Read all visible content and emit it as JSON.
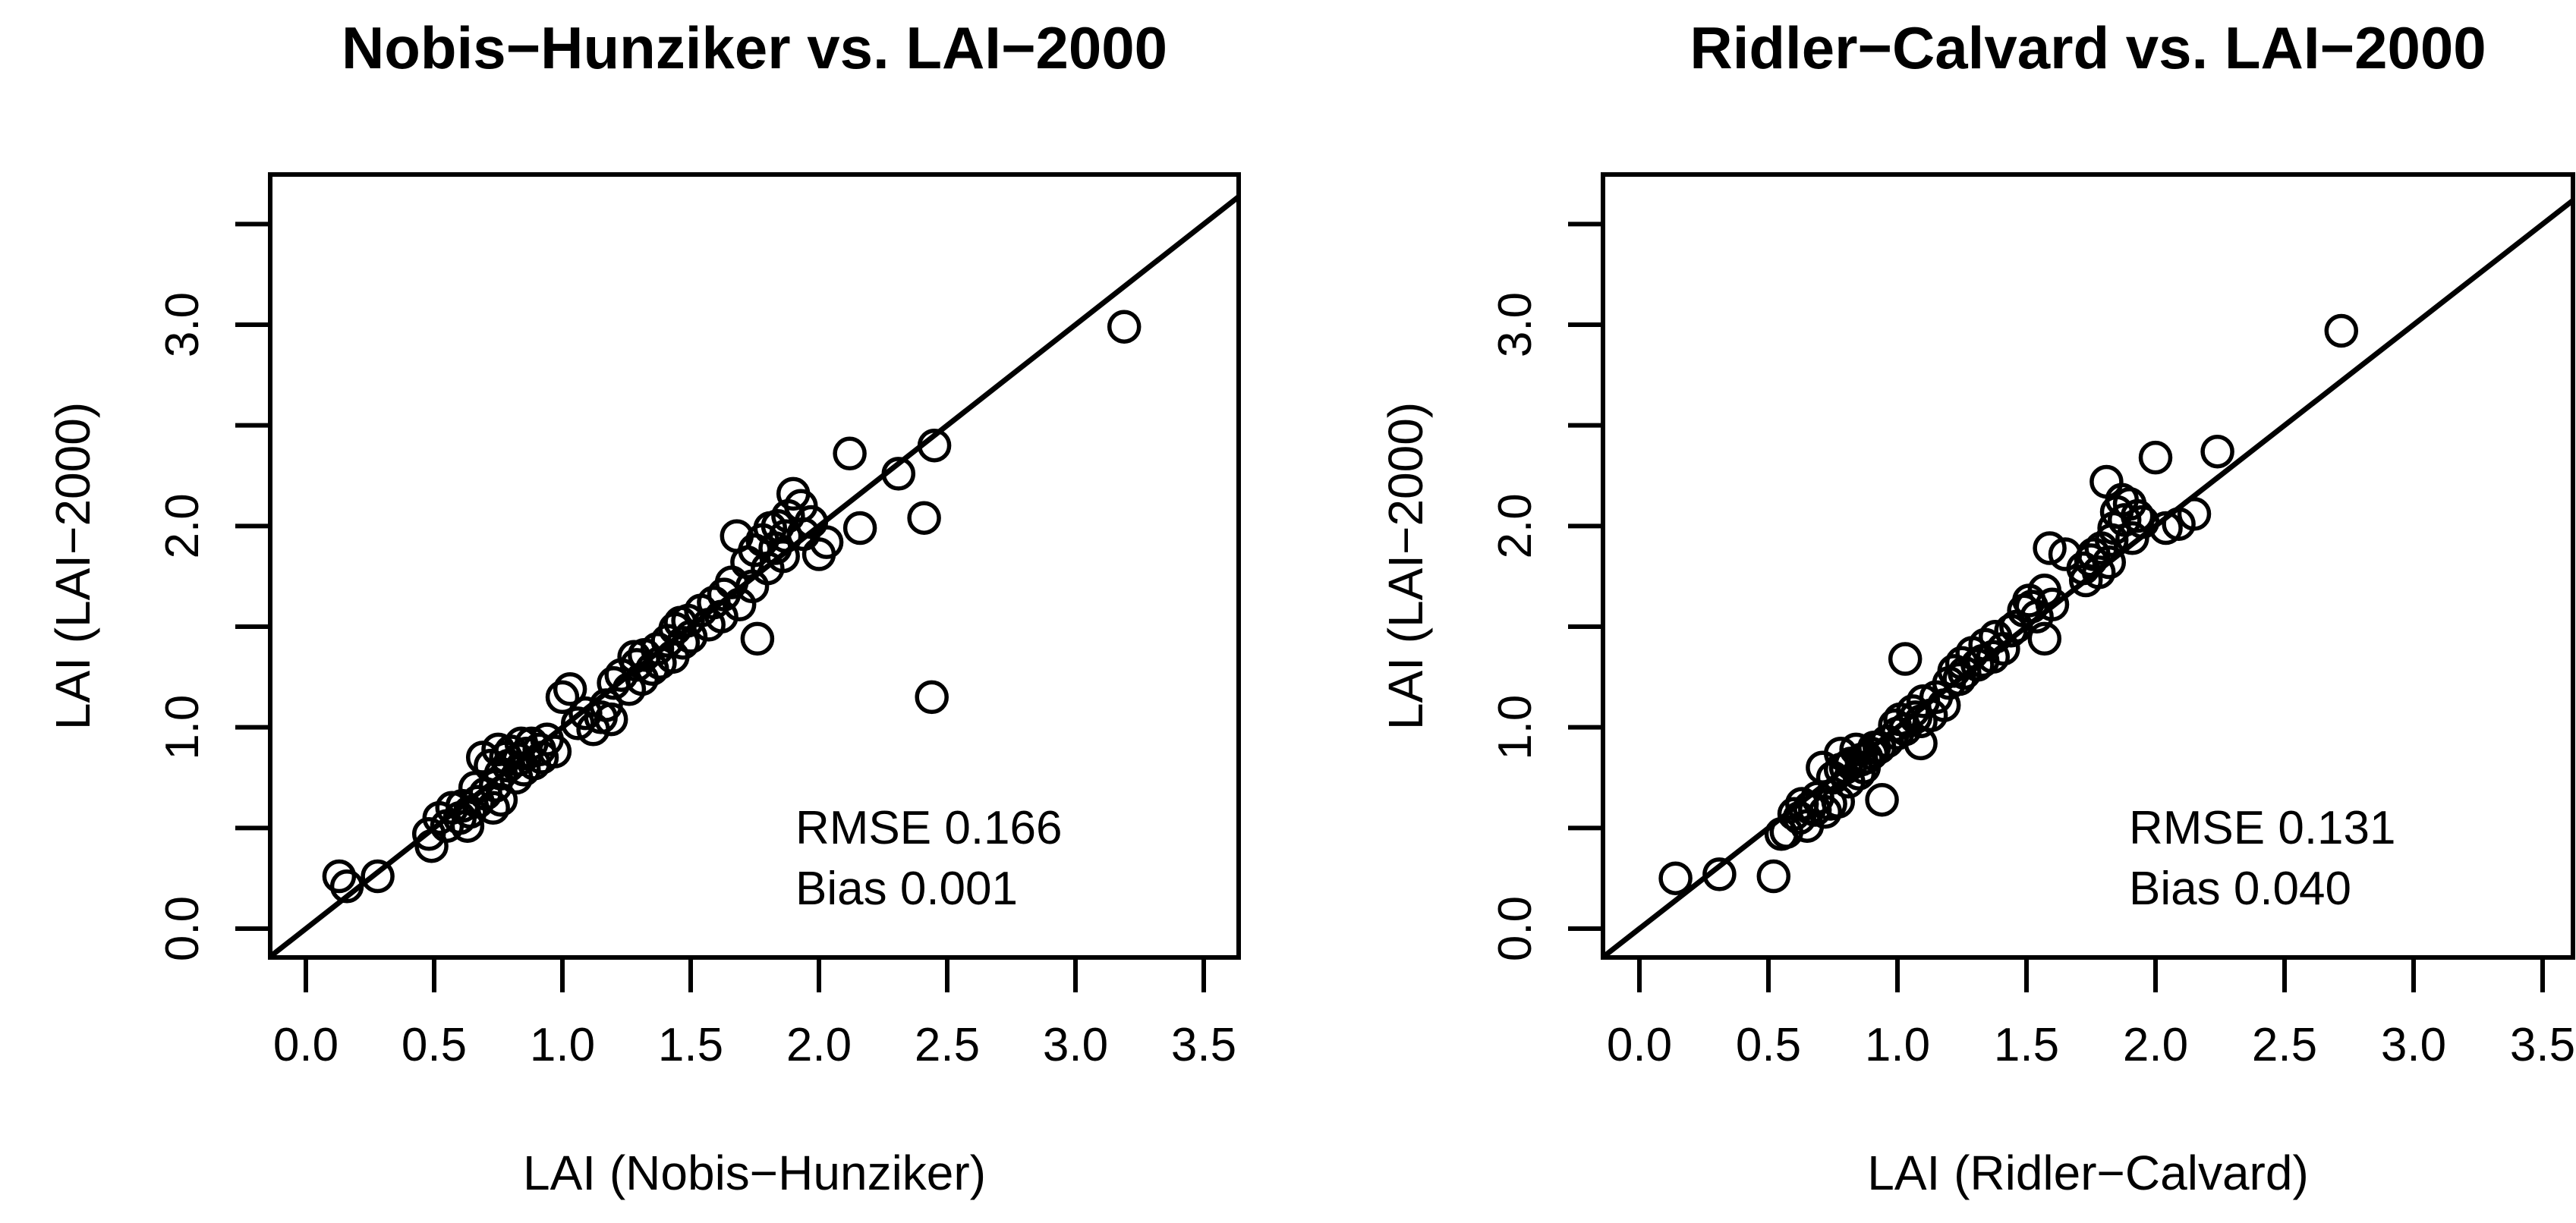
{
  "figure": {
    "background": "#ffffff",
    "ink": "#000000",
    "marker": "open-circle",
    "layout": "two scatter plots side by side"
  },
  "chart_data": [
    {
      "type": "scatter",
      "title": "Nobis−Hunziker vs. LAI−2000",
      "xlabel": "LAI (Nobis−Hunziker)",
      "ylabel": "LAI (LAI−2000)",
      "rmse_label": "RMSE 0.166",
      "bias_label": "Bias 0.001",
      "xlim": [
        0,
        3.5
      ],
      "ylim": [
        0,
        3.5
      ],
      "grid": false,
      "identity_line": true,
      "xticks": [
        {
          "v": 0.0,
          "label": "0.0"
        },
        {
          "v": 0.5,
          "label": "0.5"
        },
        {
          "v": 1.0,
          "label": "1.0"
        },
        {
          "v": 1.5,
          "label": "1.5"
        },
        {
          "v": 2.0,
          "label": "2.0"
        },
        {
          "v": 2.5,
          "label": "2.5"
        },
        {
          "v": 3.0,
          "label": "3.0"
        },
        {
          "v": 3.5,
          "label": "3.5"
        }
      ],
      "yticks": [
        {
          "v": 0.0,
          "label": "0.0"
        },
        {
          "v": 0.5,
          "label": ""
        },
        {
          "v": 1.0,
          "label": "1.0"
        },
        {
          "v": 1.5,
          "label": ""
        },
        {
          "v": 2.0,
          "label": "2.0"
        },
        {
          "v": 2.5,
          "label": ""
        },
        {
          "v": 3.0,
          "label": "3.0"
        },
        {
          "v": 3.5,
          "label": ""
        }
      ],
      "points": [
        [
          0.13,
          0.26
        ],
        [
          0.16,
          0.21
        ],
        [
          0.28,
          0.26
        ],
        [
          0.48,
          0.47
        ],
        [
          0.49,
          0.41
        ],
        [
          0.52,
          0.55
        ],
        [
          0.55,
          0.51
        ],
        [
          0.57,
          0.6
        ],
        [
          0.6,
          0.55
        ],
        [
          0.61,
          0.61
        ],
        [
          0.63,
          0.51
        ],
        [
          0.64,
          0.58
        ],
        [
          0.66,
          0.7
        ],
        [
          0.67,
          0.63
        ],
        [
          0.7,
          0.67
        ],
        [
          0.73,
          0.6
        ],
        [
          0.74,
          0.71
        ],
        [
          0.76,
          0.64
        ],
        [
          0.69,
          0.85
        ],
        [
          0.72,
          0.81
        ],
        [
          0.75,
          0.89
        ],
        [
          0.76,
          0.77
        ],
        [
          0.78,
          0.85
        ],
        [
          0.79,
          0.81
        ],
        [
          0.8,
          0.88
        ],
        [
          0.82,
          0.75
        ],
        [
          0.83,
          0.84
        ],
        [
          0.84,
          0.92
        ],
        [
          0.85,
          0.79
        ],
        [
          0.86,
          0.87
        ],
        [
          0.88,
          0.92
        ],
        [
          0.89,
          0.82
        ],
        [
          0.91,
          0.89
        ],
        [
          0.92,
          0.85
        ],
        [
          0.94,
          0.94
        ],
        [
          0.97,
          0.88
        ],
        [
          1.0,
          1.15
        ],
        [
          1.03,
          1.19
        ],
        [
          1.06,
          1.02
        ],
        [
          1.09,
          1.07
        ],
        [
          1.12,
          0.99
        ],
        [
          1.15,
          1.05
        ],
        [
          1.17,
          1.11
        ],
        [
          1.19,
          1.04
        ],
        [
          1.2,
          1.22
        ],
        [
          1.23,
          1.26
        ],
        [
          1.26,
          1.19
        ],
        [
          1.28,
          1.35
        ],
        [
          1.29,
          1.31
        ],
        [
          1.31,
          1.24
        ],
        [
          1.32,
          1.36
        ],
        [
          1.35,
          1.29
        ],
        [
          1.37,
          1.39
        ],
        [
          1.38,
          1.32
        ],
        [
          1.41,
          1.43
        ],
        [
          1.43,
          1.35
        ],
        [
          1.44,
          1.49
        ],
        [
          1.46,
          1.52
        ],
        [
          1.47,
          1.42
        ],
        [
          1.49,
          1.53
        ],
        [
          1.5,
          1.45
        ],
        [
          1.54,
          1.58
        ],
        [
          1.57,
          1.51
        ],
        [
          1.59,
          1.62
        ],
        [
          1.62,
          1.55
        ],
        [
          1.63,
          1.66
        ],
        [
          1.66,
          1.72
        ],
        [
          1.69,
          1.61
        ],
        [
          1.74,
          1.7
        ],
        [
          1.76,
          1.44
        ],
        [
          1.68,
          1.95
        ],
        [
          1.72,
          1.82
        ],
        [
          1.75,
          1.88
        ],
        [
          1.78,
          1.93
        ],
        [
          1.8,
          1.79
        ],
        [
          1.81,
          1.99
        ],
        [
          1.83,
          1.89
        ],
        [
          1.84,
          2.0
        ],
        [
          1.86,
          1.85
        ],
        [
          1.87,
          1.95
        ],
        [
          1.88,
          2.05
        ],
        [
          1.9,
          2.16
        ],
        [
          1.93,
          2.1
        ],
        [
          1.94,
          1.96
        ],
        [
          1.97,
          2.02
        ],
        [
          2.0,
          1.86
        ],
        [
          2.03,
          1.92
        ],
        [
          2.12,
          2.36
        ],
        [
          2.16,
          1.99
        ],
        [
          2.31,
          2.26
        ],
        [
          2.41,
          2.04
        ],
        [
          2.45,
          2.4
        ],
        [
          2.44,
          1.15
        ],
        [
          3.19,
          2.99
        ]
      ]
    },
    {
      "type": "scatter",
      "title": "Ridler−Calvard vs. LAI−2000",
      "xlabel": "LAI (Ridler−Calvard)",
      "ylabel": "LAI (LAI−2000)",
      "rmse_label": "RMSE 0.131",
      "bias_label": "Bias 0.040",
      "xlim": [
        0,
        3.5
      ],
      "ylim": [
        0,
        3.5
      ],
      "grid": false,
      "identity_line": true,
      "xticks": [
        {
          "v": 0.0,
          "label": "0.0"
        },
        {
          "v": 0.5,
          "label": "0.5"
        },
        {
          "v": 1.0,
          "label": "1.0"
        },
        {
          "v": 1.5,
          "label": "1.5"
        },
        {
          "v": 2.0,
          "label": "2.0"
        },
        {
          "v": 2.5,
          "label": "2.5"
        },
        {
          "v": 3.0,
          "label": "3.0"
        },
        {
          "v": 3.5,
          "label": "3.5"
        }
      ],
      "yticks": [
        {
          "v": 0.0,
          "label": "0.0"
        },
        {
          "v": 0.5,
          "label": ""
        },
        {
          "v": 1.0,
          "label": "1.0"
        },
        {
          "v": 1.5,
          "label": ""
        },
        {
          "v": 2.0,
          "label": "2.0"
        },
        {
          "v": 2.5,
          "label": ""
        },
        {
          "v": 3.0,
          "label": "3.0"
        },
        {
          "v": 3.5,
          "label": ""
        }
      ],
      "points": [
        [
          0.14,
          0.25
        ],
        [
          0.31,
          0.27
        ],
        [
          0.52,
          0.26
        ],
        [
          0.55,
          0.47
        ],
        [
          0.57,
          0.48
        ],
        [
          0.6,
          0.57
        ],
        [
          0.62,
          0.55
        ],
        [
          0.63,
          0.62
        ],
        [
          0.65,
          0.51
        ],
        [
          0.66,
          0.6
        ],
        [
          0.68,
          0.59
        ],
        [
          0.69,
          0.65
        ],
        [
          0.72,
          0.58
        ],
        [
          0.74,
          0.62
        ],
        [
          0.77,
          0.63
        ],
        [
          0.94,
          0.64
        ],
        [
          0.71,
          0.8
        ],
        [
          0.75,
          0.75
        ],
        [
          0.78,
          0.79
        ],
        [
          0.78,
          0.87
        ],
        [
          0.8,
          0.8
        ],
        [
          0.81,
          0.73
        ],
        [
          0.82,
          0.82
        ],
        [
          0.84,
          0.89
        ],
        [
          0.85,
          0.77
        ],
        [
          0.86,
          0.84
        ],
        [
          0.87,
          0.8
        ],
        [
          0.88,
          0.85
        ],
        [
          0.9,
          0.87
        ],
        [
          0.91,
          0.9
        ],
        [
          0.93,
          0.9
        ],
        [
          0.96,
          0.93
        ],
        [
          0.99,
          1.01
        ],
        [
          1.0,
          0.97
        ],
        [
          1.01,
          1.04
        ],
        [
          1.03,
          0.99
        ],
        [
          1.03,
          1.34
        ],
        [
          1.06,
          1.08
        ],
        [
          1.07,
          1.05
        ],
        [
          1.09,
          0.92
        ],
        [
          1.09,
          1.03
        ],
        [
          1.1,
          1.13
        ],
        [
          1.13,
          1.06
        ],
        [
          1.15,
          1.15
        ],
        [
          1.18,
          1.11
        ],
        [
          1.2,
          1.22
        ],
        [
          1.22,
          1.28
        ],
        [
          1.24,
          1.24
        ],
        [
          1.25,
          1.32
        ],
        [
          1.26,
          1.27
        ],
        [
          1.29,
          1.37
        ],
        [
          1.31,
          1.31
        ],
        [
          1.33,
          1.33
        ],
        [
          1.34,
          1.41
        ],
        [
          1.37,
          1.35
        ],
        [
          1.38,
          1.45
        ],
        [
          1.41,
          1.39
        ],
        [
          1.44,
          1.48
        ],
        [
          1.46,
          1.5
        ],
        [
          1.57,
          1.44
        ],
        [
          1.49,
          1.58
        ],
        [
          1.51,
          1.63
        ],
        [
          1.52,
          1.6
        ],
        [
          1.54,
          1.55
        ],
        [
          1.57,
          1.68
        ],
        [
          1.6,
          1.61
        ],
        [
          1.59,
          1.89
        ],
        [
          1.65,
          1.86
        ],
        [
          1.72,
          1.79
        ],
        [
          1.73,
          1.73
        ],
        [
          1.75,
          1.83
        ],
        [
          1.76,
          1.86
        ],
        [
          1.78,
          1.77
        ],
        [
          1.79,
          1.89
        ],
        [
          1.81,
          2.22
        ],
        [
          1.82,
          1.82
        ],
        [
          1.83,
          1.93
        ],
        [
          1.84,
          1.99
        ],
        [
          1.85,
          2.07
        ],
        [
          1.87,
          2.13
        ],
        [
          1.88,
          2.03
        ],
        [
          1.9,
          2.11
        ],
        [
          1.91,
          1.94
        ],
        [
          1.93,
          2.05
        ],
        [
          1.95,
          2.02
        ],
        [
          2.0,
          2.34
        ],
        [
          2.04,
          1.99
        ],
        [
          2.09,
          2.01
        ],
        [
          2.15,
          2.06
        ],
        [
          2.24,
          2.37
        ],
        [
          2.72,
          2.97
        ]
      ]
    }
  ]
}
